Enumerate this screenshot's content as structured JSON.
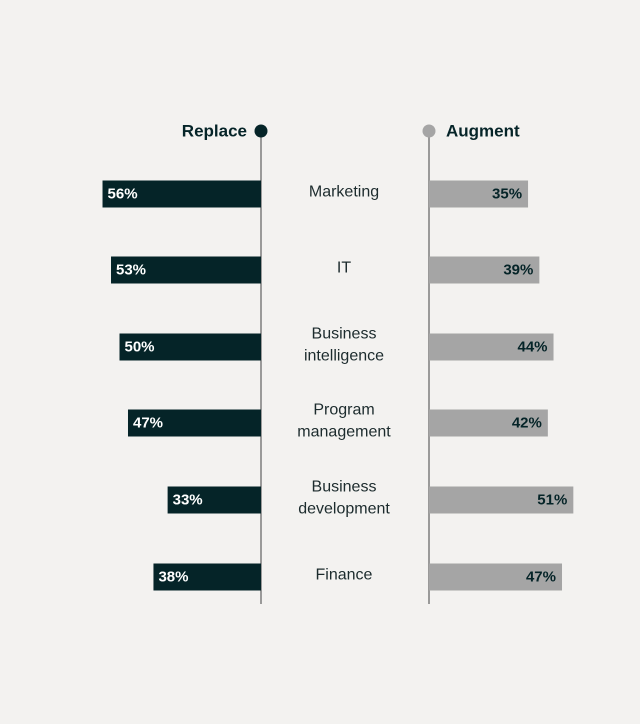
{
  "chart_data": {
    "type": "bar",
    "title": "",
    "legend": {
      "left": {
        "label": "Replace",
        "color": "#052428"
      },
      "right": {
        "label": "Augment",
        "color": "#a5a5a5"
      }
    },
    "categories": [
      [
        "Marketing"
      ],
      [
        "IT"
      ],
      [
        "Business",
        "intelligence"
      ],
      [
        "Program",
        "management"
      ],
      [
        "Business",
        "development"
      ],
      [
        "Finance"
      ]
    ],
    "series": [
      {
        "name": "Replace",
        "values": [
          56,
          53,
          50,
          47,
          33,
          38
        ],
        "labels": [
          "56%",
          "53%",
          "50%",
          "47%",
          "33%",
          "38%"
        ]
      },
      {
        "name": "Augment",
        "values": [
          35,
          39,
          44,
          42,
          51,
          47
        ],
        "labels": [
          "35%",
          "39%",
          "44%",
          "42%",
          "51%",
          "47%"
        ]
      }
    ],
    "colors": {
      "replace": "#052428",
      "augment": "#a5a5a5",
      "replace_text": "#ffffff",
      "augment_text": "#052428",
      "axis": "#6b6b6b",
      "category_text": "#1c2b2d"
    }
  }
}
